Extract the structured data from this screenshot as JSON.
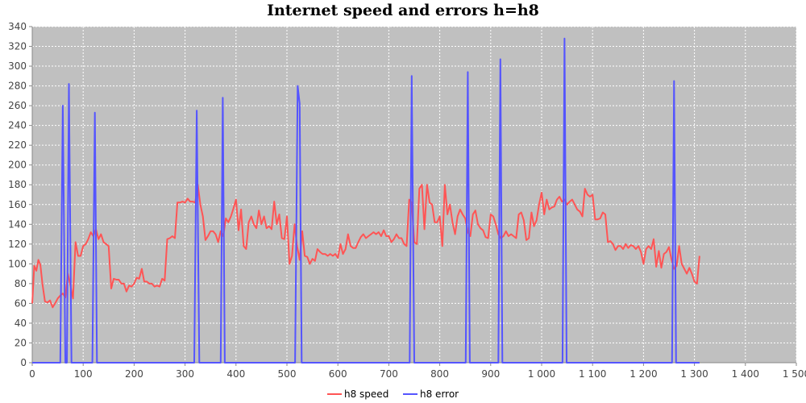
{
  "chart_data": {
    "type": "line",
    "title": "Internet speed and errors h=h8",
    "xlabel": "",
    "ylabel": "",
    "xlim": [
      0,
      1500
    ],
    "ylim": [
      0,
      340
    ],
    "x_tick_labels": [
      "0",
      "100",
      "200",
      "300",
      "400",
      "500",
      "600",
      "700",
      "800",
      "900",
      "1 000",
      "1 100",
      "1 200",
      "1 300",
      "1 400",
      "1 500"
    ],
    "y_tick_labels": [
      "0",
      "20",
      "40",
      "60",
      "80",
      "100",
      "120",
      "140",
      "160",
      "180",
      "200",
      "220",
      "240",
      "260",
      "280",
      "300",
      "320",
      "340"
    ],
    "grid": true,
    "legend_position": "bottom",
    "plot_background": "#c0c0c0",
    "series": [
      {
        "name": "h8 speed",
        "color": "#ff5555",
        "points": [
          [
            0,
            60
          ],
          [
            4,
            98
          ],
          [
            8,
            93
          ],
          [
            12,
            104
          ],
          [
            16,
            99
          ],
          [
            20,
            80
          ],
          [
            25,
            62
          ],
          [
            30,
            61
          ],
          [
            35,
            63
          ],
          [
            40,
            56
          ],
          [
            45,
            60
          ],
          [
            50,
            65
          ],
          [
            55,
            68
          ],
          [
            60,
            70
          ],
          [
            65,
            66
          ],
          [
            70,
            90
          ],
          [
            75,
            78
          ],
          [
            80,
            65
          ],
          [
            85,
            122
          ],
          [
            90,
            108
          ],
          [
            95,
            108
          ],
          [
            100,
            118
          ],
          [
            105,
            120
          ],
          [
            110,
            125
          ],
          [
            115,
            132
          ],
          [
            120,
            128
          ],
          [
            125,
            135
          ],
          [
            130,
            125
          ],
          [
            135,
            130
          ],
          [
            140,
            122
          ],
          [
            145,
            120
          ],
          [
            150,
            118
          ],
          [
            155,
            75
          ],
          [
            160,
            85
          ],
          [
            165,
            84
          ],
          [
            170,
            84
          ],
          [
            175,
            80
          ],
          [
            180,
            80
          ],
          [
            185,
            72
          ],
          [
            190,
            78
          ],
          [
            195,
            77
          ],
          [
            200,
            80
          ],
          [
            205,
            86
          ],
          [
            210,
            85
          ],
          [
            215,
            95
          ],
          [
            220,
            82
          ],
          [
            225,
            82
          ],
          [
            230,
            80
          ],
          [
            235,
            80
          ],
          [
            240,
            77
          ],
          [
            245,
            78
          ],
          [
            250,
            77
          ],
          [
            255,
            85
          ],
          [
            260,
            83
          ],
          [
            265,
            125
          ],
          [
            270,
            126
          ],
          [
            275,
            128
          ],
          [
            280,
            126
          ],
          [
            285,
            162
          ],
          [
            290,
            162
          ],
          [
            295,
            163
          ],
          [
            300,
            162
          ],
          [
            305,
            166
          ],
          [
            310,
            163
          ],
          [
            315,
            163
          ],
          [
            320,
            162
          ],
          [
            325,
            180
          ],
          [
            330,
            160
          ],
          [
            335,
            148
          ],
          [
            340,
            124
          ],
          [
            345,
            128
          ],
          [
            350,
            133
          ],
          [
            355,
            133
          ],
          [
            360,
            130
          ],
          [
            365,
            122
          ],
          [
            370,
            133
          ],
          [
            375,
            128
          ],
          [
            380,
            146
          ],
          [
            385,
            142
          ],
          [
            390,
            148
          ],
          [
            395,
            156
          ],
          [
            400,
            165
          ],
          [
            405,
            134
          ],
          [
            410,
            155
          ],
          [
            415,
            118
          ],
          [
            420,
            115
          ],
          [
            425,
            142
          ],
          [
            430,
            148
          ],
          [
            435,
            140
          ],
          [
            440,
            136
          ],
          [
            445,
            154
          ],
          [
            450,
            140
          ],
          [
            455,
            148
          ],
          [
            460,
            136
          ],
          [
            465,
            138
          ],
          [
            470,
            135
          ],
          [
            475,
            163
          ],
          [
            480,
            140
          ],
          [
            485,
            150
          ],
          [
            490,
            126
          ],
          [
            495,
            125
          ],
          [
            500,
            148
          ],
          [
            505,
            100
          ],
          [
            510,
            108
          ],
          [
            515,
            140
          ],
          [
            520,
            118
          ],
          [
            525,
            104
          ],
          [
            530,
            133
          ],
          [
            535,
            108
          ],
          [
            540,
            107
          ],
          [
            545,
            100
          ],
          [
            550,
            105
          ],
          [
            555,
            103
          ],
          [
            560,
            115
          ],
          [
            565,
            112
          ],
          [
            570,
            110
          ],
          [
            575,
            110
          ],
          [
            580,
            108
          ],
          [
            585,
            110
          ],
          [
            590,
            108
          ],
          [
            595,
            110
          ],
          [
            600,
            106
          ],
          [
            605,
            120
          ],
          [
            610,
            110
          ],
          [
            615,
            115
          ],
          [
            620,
            130
          ],
          [
            625,
            118
          ],
          [
            630,
            116
          ],
          [
            635,
            116
          ],
          [
            640,
            122
          ],
          [
            645,
            127
          ],
          [
            650,
            130
          ],
          [
            655,
            126
          ],
          [
            660,
            128
          ],
          [
            665,
            130
          ],
          [
            670,
            132
          ],
          [
            675,
            130
          ],
          [
            680,
            132
          ],
          [
            685,
            128
          ],
          [
            690,
            134
          ],
          [
            695,
            128
          ],
          [
            700,
            128
          ],
          [
            705,
            122
          ],
          [
            710,
            125
          ],
          [
            715,
            130
          ],
          [
            720,
            126
          ],
          [
            725,
            126
          ],
          [
            730,
            120
          ],
          [
            735,
            118
          ],
          [
            740,
            165
          ],
          [
            745,
            162
          ],
          [
            750,
            122
          ],
          [
            755,
            120
          ],
          [
            760,
            176
          ],
          [
            765,
            180
          ],
          [
            770,
            135
          ],
          [
            775,
            180
          ],
          [
            780,
            162
          ],
          [
            785,
            160
          ],
          [
            790,
            142
          ],
          [
            795,
            142
          ],
          [
            800,
            148
          ],
          [
            805,
            118
          ],
          [
            810,
            180
          ],
          [
            815,
            150
          ],
          [
            820,
            160
          ],
          [
            825,
            142
          ],
          [
            830,
            130
          ],
          [
            835,
            148
          ],
          [
            840,
            155
          ],
          [
            845,
            150
          ],
          [
            850,
            146
          ],
          [
            855,
            132
          ],
          [
            860,
            128
          ],
          [
            865,
            150
          ],
          [
            870,
            154
          ],
          [
            875,
            140
          ],
          [
            880,
            136
          ],
          [
            885,
            134
          ],
          [
            890,
            127
          ],
          [
            895,
            126
          ],
          [
            900,
            150
          ],
          [
            905,
            148
          ],
          [
            910,
            140
          ],
          [
            915,
            130
          ],
          [
            920,
            126
          ],
          [
            925,
            128
          ],
          [
            930,
            133
          ],
          [
            935,
            128
          ],
          [
            940,
            130
          ],
          [
            945,
            128
          ],
          [
            950,
            126
          ],
          [
            955,
            150
          ],
          [
            960,
            152
          ],
          [
            965,
            144
          ],
          [
            970,
            124
          ],
          [
            975,
            126
          ],
          [
            980,
            152
          ],
          [
            985,
            138
          ],
          [
            990,
            144
          ],
          [
            995,
            160
          ],
          [
            1000,
            172
          ],
          [
            1005,
            150
          ],
          [
            1010,
            165
          ],
          [
            1015,
            155
          ],
          [
            1020,
            157
          ],
          [
            1025,
            158
          ],
          [
            1030,
            165
          ],
          [
            1035,
            168
          ],
          [
            1040,
            163
          ],
          [
            1045,
            165
          ],
          [
            1050,
            160
          ],
          [
            1055,
            163
          ],
          [
            1060,
            165
          ],
          [
            1065,
            160
          ],
          [
            1070,
            155
          ],
          [
            1075,
            153
          ],
          [
            1080,
            148
          ],
          [
            1085,
            176
          ],
          [
            1090,
            170
          ],
          [
            1095,
            168
          ],
          [
            1100,
            170
          ],
          [
            1105,
            145
          ],
          [
            1110,
            145
          ],
          [
            1115,
            146
          ],
          [
            1120,
            152
          ],
          [
            1125,
            150
          ],
          [
            1130,
            122
          ],
          [
            1135,
            123
          ],
          [
            1140,
            120
          ],
          [
            1145,
            114
          ],
          [
            1150,
            118
          ],
          [
            1155,
            118
          ],
          [
            1160,
            115
          ],
          [
            1165,
            120
          ],
          [
            1170,
            116
          ],
          [
            1175,
            119
          ],
          [
            1180,
            118
          ],
          [
            1185,
            115
          ],
          [
            1190,
            118
          ],
          [
            1195,
            112
          ],
          [
            1200,
            100
          ],
          [
            1205,
            115
          ],
          [
            1210,
            118
          ],
          [
            1215,
            115
          ],
          [
            1220,
            125
          ],
          [
            1225,
            97
          ],
          [
            1230,
            113
          ],
          [
            1235,
            96
          ],
          [
            1240,
            110
          ],
          [
            1245,
            112
          ],
          [
            1250,
            117
          ],
          [
            1255,
            104
          ],
          [
            1260,
            95
          ],
          [
            1265,
            98
          ],
          [
            1270,
            118
          ],
          [
            1275,
            100
          ],
          [
            1280,
            95
          ],
          [
            1285,
            90
          ],
          [
            1290,
            96
          ],
          [
            1295,
            90
          ],
          [
            1300,
            82
          ],
          [
            1305,
            80
          ],
          [
            1310,
            108
          ]
        ]
      },
      {
        "name": "h8 error",
        "color": "#5555ff",
        "points": [
          [
            0,
            0
          ],
          [
            55,
            0
          ],
          [
            60,
            260
          ],
          [
            65,
            0
          ],
          [
            68,
            0
          ],
          [
            72,
            282
          ],
          [
            77,
            0
          ],
          [
            118,
            0
          ],
          [
            123,
            253
          ],
          [
            127,
            0
          ],
          [
            318,
            0
          ],
          [
            323,
            255
          ],
          [
            328,
            0
          ],
          [
            370,
            0
          ],
          [
            374,
            268
          ],
          [
            378,
            0
          ],
          [
            516,
            0
          ],
          [
            521,
            280
          ],
          [
            525,
            262
          ],
          [
            529,
            0
          ],
          [
            741,
            0
          ],
          [
            745,
            290
          ],
          [
            750,
            0
          ],
          [
            851,
            0
          ],
          [
            855,
            294
          ],
          [
            859,
            0
          ],
          [
            915,
            0
          ],
          [
            919,
            307
          ],
          [
            923,
            0
          ],
          [
            1041,
            0
          ],
          [
            1045,
            328
          ],
          [
            1049,
            0
          ],
          [
            1256,
            0
          ],
          [
            1260,
            285
          ],
          [
            1264,
            0
          ],
          [
            1310,
            0
          ]
        ]
      }
    ]
  }
}
